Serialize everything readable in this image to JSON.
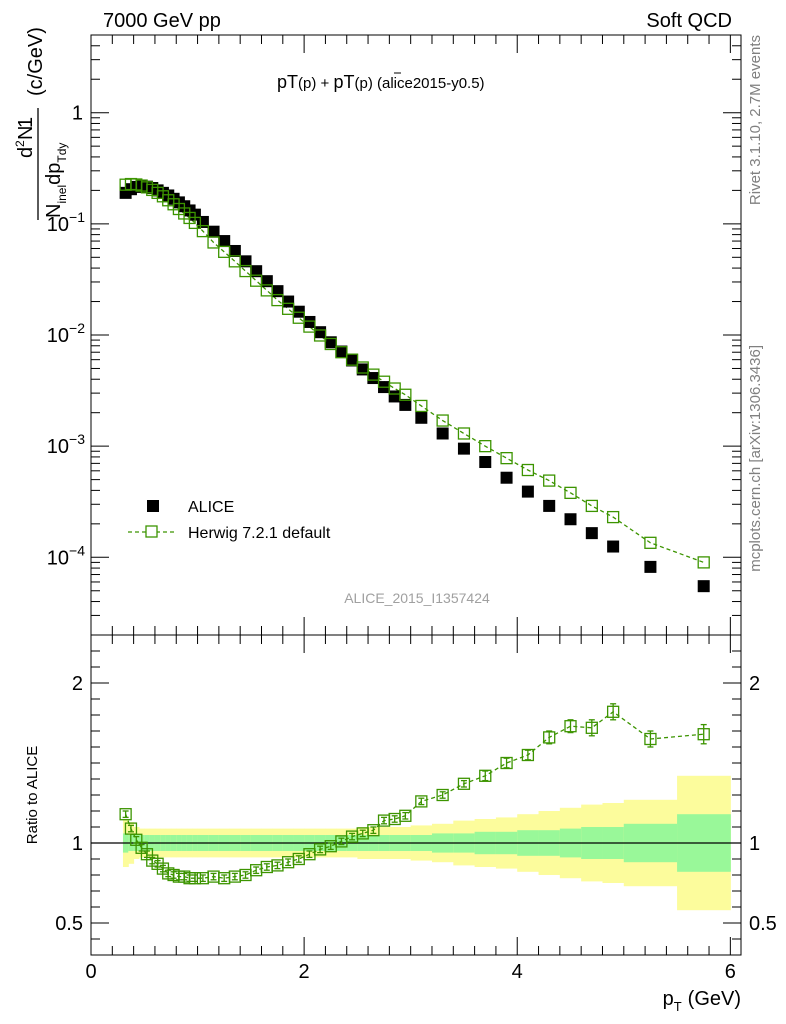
{
  "header": {
    "beam": "7000 GeV pp",
    "process": "Soft QCD",
    "side_top": "Rivet 3.1.10,  2.7M events",
    "side_bottom": "mcplots.cern.ch [arXiv:1306.3436]"
  },
  "chart_data": [
    {
      "type": "scatter",
      "title_parts": {
        "a": "pT",
        "b": "(p)",
        "c": " + ",
        "d": "pT",
        "e": "(p)",
        "f": " (alice2015-y0.5)"
      },
      "title": "pT(p) + pT(p̄) (alice2015-y0.5)",
      "ylabel_parts": {
        "one": "1",
        "num_d": "d",
        "num_2": "2",
        "num_N": "N",
        "den_N": "N",
        "den_sub": "inel",
        "den_dp": "dp",
        "den_T": "T",
        "den_dy": "dy",
        "units": "(c/GeV)"
      },
      "yscale": "log",
      "ylim": [
        2e-05,
        5
      ],
      "xlim": [
        0,
        6.1
      ],
      "yticks": [
        {
          "value": 1,
          "base": "1",
          "exp": ""
        },
        {
          "value": 0.1,
          "base": "10",
          "exp": "−1"
        },
        {
          "value": 0.01,
          "base": "10",
          "exp": "−2"
        },
        {
          "value": 0.001,
          "base": "10",
          "exp": "−3"
        },
        {
          "value": 0.0001,
          "base": "10",
          "exp": "−4"
        }
      ],
      "watermark": "ALICE_2015_I1357424",
      "legend": {
        "position": "lower-left",
        "data_label": "ALICE",
        "mc_label": "Herwig 7.2.1 default"
      },
      "x": [
        0.325,
        0.375,
        0.425,
        0.475,
        0.525,
        0.575,
        0.625,
        0.675,
        0.725,
        0.775,
        0.825,
        0.875,
        0.925,
        0.975,
        1.05,
        1.15,
        1.25,
        1.35,
        1.45,
        1.55,
        1.65,
        1.75,
        1.85,
        1.95,
        2.05,
        2.15,
        2.25,
        2.35,
        2.45,
        2.55,
        2.65,
        2.75,
        2.85,
        2.95,
        3.1,
        3.3,
        3.5,
        3.7,
        3.9,
        4.1,
        4.3,
        4.5,
        4.7,
        4.9,
        5.25,
        5.75
      ],
      "series": [
        {
          "name": "ALICE",
          "values": [
            0.19,
            0.205,
            0.215,
            0.218,
            0.216,
            0.21,
            0.2,
            0.19,
            0.18,
            0.168,
            0.156,
            0.144,
            0.132,
            0.121,
            0.104,
            0.085,
            0.07,
            0.057,
            0.046,
            0.0375,
            0.0305,
            0.0248,
            0.02,
            0.0162,
            0.0131,
            0.0106,
            0.0086,
            0.0071,
            0.0059,
            0.0049,
            0.0041,
            0.0034,
            0.0028,
            0.00235,
            0.0018,
            0.0013,
            0.00095,
            0.00072,
            0.00052,
            0.00039,
            0.00029,
            0.00022,
            0.000165,
            0.000125,
            8.2e-05,
            5.5e-05
          ]
        },
        {
          "name": "Herwig 7.2.1 default",
          "values": [
            0.225,
            0.228,
            0.226,
            0.221,
            0.213,
            0.202,
            0.19,
            0.177,
            0.163,
            0.15,
            0.136,
            0.124,
            0.113,
            0.102,
            0.086,
            0.068,
            0.056,
            0.046,
            0.0376,
            0.0308,
            0.0252,
            0.0206,
            0.0172,
            0.0143,
            0.0119,
            0.0099,
            0.0083,
            0.007,
            0.006,
            0.0051,
            0.0044,
            0.0038,
            0.0033,
            0.0029,
            0.0023,
            0.0017,
            0.0013,
            0.001,
            0.00078,
            0.00061,
            0.00049,
            0.00038,
            0.00029,
            0.00023,
            0.000135,
            9e-05
          ]
        }
      ]
    },
    {
      "type": "scatter",
      "ylabel": "Ratio to ALICE",
      "xlabel_parts": {
        "p": "p",
        "sub": "T",
        "units": "(GeV)"
      },
      "ylim": [
        0.3,
        2.3
      ],
      "xlim": [
        0,
        6.1
      ],
      "yticks": [
        {
          "value": 0.5,
          "label": "0.5"
        },
        {
          "value": 1,
          "label": "1"
        },
        {
          "value": 2,
          "label": "2"
        }
      ],
      "xticks": [
        {
          "value": 0,
          "label": "0"
        },
        {
          "value": 2,
          "label": "2"
        },
        {
          "value": 4,
          "label": "4"
        },
        {
          "value": 6,
          "label": "6"
        }
      ],
      "bands": {
        "bin_edges": [
          0.3,
          0.35,
          0.4,
          0.45,
          0.5,
          0.55,
          0.6,
          0.65,
          0.7,
          0.75,
          0.8,
          0.85,
          0.9,
          0.95,
          1.0,
          1.1,
          1.2,
          1.3,
          1.4,
          1.5,
          1.6,
          1.7,
          1.8,
          1.9,
          2.0,
          2.1,
          2.2,
          2.3,
          2.4,
          2.5,
          2.6,
          2.7,
          2.8,
          2.9,
          3.0,
          3.2,
          3.4,
          3.6,
          3.8,
          4.0,
          4.2,
          4.4,
          4.6,
          4.8,
          5.0,
          5.5,
          6.0
        ],
        "stat_rel": [
          0.06,
          0.05,
          0.05,
          0.05,
          0.05,
          0.05,
          0.05,
          0.05,
          0.05,
          0.05,
          0.05,
          0.05,
          0.05,
          0.05,
          0.05,
          0.05,
          0.05,
          0.05,
          0.05,
          0.05,
          0.05,
          0.05,
          0.05,
          0.05,
          0.05,
          0.05,
          0.05,
          0.05,
          0.05,
          0.05,
          0.05,
          0.05,
          0.05,
          0.05,
          0.05,
          0.06,
          0.06,
          0.07,
          0.07,
          0.08,
          0.08,
          0.09,
          0.1,
          0.1,
          0.12,
          0.18
        ],
        "total_rel": [
          0.15,
          0.13,
          0.1,
          0.09,
          0.09,
          0.09,
          0.09,
          0.09,
          0.09,
          0.09,
          0.09,
          0.09,
          0.09,
          0.09,
          0.09,
          0.09,
          0.09,
          0.09,
          0.09,
          0.09,
          0.09,
          0.09,
          0.09,
          0.09,
          0.09,
          0.09,
          0.09,
          0.09,
          0.09,
          0.1,
          0.1,
          0.1,
          0.1,
          0.1,
          0.11,
          0.12,
          0.14,
          0.15,
          0.16,
          0.18,
          0.2,
          0.22,
          0.24,
          0.25,
          0.27,
          0.42
        ],
        "colors": {
          "stat": "#99f899",
          "total": "#fcfc9c"
        }
      },
      "ratio_values": [
        1.18,
        1.09,
        1.02,
        0.97,
        0.93,
        0.89,
        0.87,
        0.84,
        0.81,
        0.8,
        0.79,
        0.79,
        0.78,
        0.78,
        0.78,
        0.79,
        0.78,
        0.79,
        0.8,
        0.83,
        0.85,
        0.86,
        0.88,
        0.9,
        0.93,
        0.96,
        0.98,
        1.01,
        1.04,
        1.06,
        1.08,
        1.14,
        1.15,
        1.17,
        1.26,
        1.3,
        1.37,
        1.42,
        1.5,
        1.55,
        1.66,
        1.73,
        1.72,
        1.82,
        1.65,
        1.68
      ],
      "ratio_err": [
        0.02,
        0.02,
        0.02,
        0.02,
        0.02,
        0.02,
        0.02,
        0.02,
        0.02,
        0.02,
        0.02,
        0.02,
        0.02,
        0.02,
        0.02,
        0.02,
        0.02,
        0.02,
        0.02,
        0.02,
        0.02,
        0.02,
        0.02,
        0.02,
        0.02,
        0.02,
        0.02,
        0.02,
        0.02,
        0.02,
        0.02,
        0.02,
        0.02,
        0.02,
        0.02,
        0.02,
        0.02,
        0.03,
        0.03,
        0.03,
        0.04,
        0.04,
        0.05,
        0.05,
        0.05,
        0.06
      ]
    }
  ],
  "colors": {
    "data": "#000000",
    "mc": "#3c9400",
    "side_text": "#808080",
    "watermark": "#a0a0a0"
  }
}
